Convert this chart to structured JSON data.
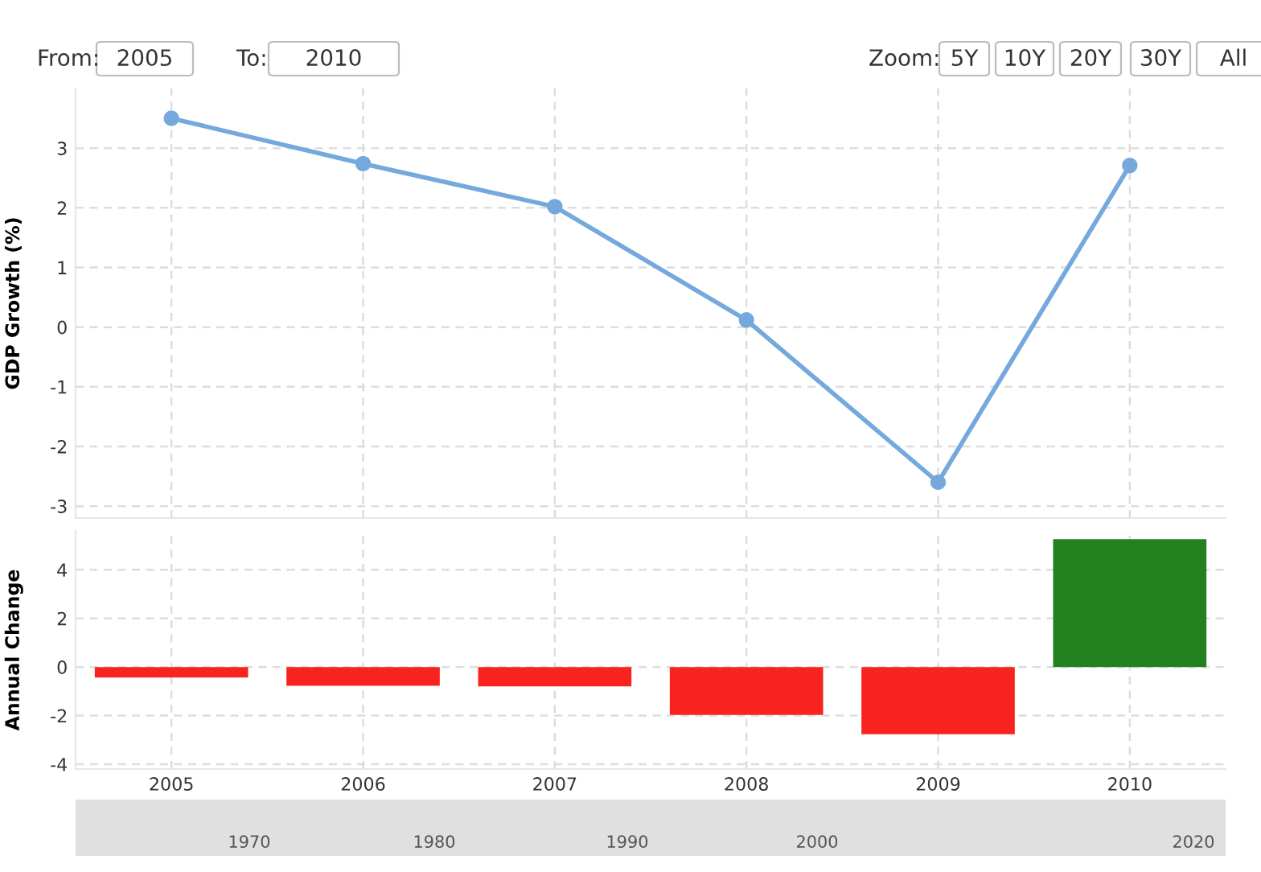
{
  "chart_data": [
    {
      "type": "line",
      "ylabel": "GDP Growth (%)",
      "categories": [
        null,
        null,
        null,
        null,
        null,
        null
      ],
      "series": [
        {
          "color": "#75a9dd",
          "values": [
            3.5,
            2.74,
            2.02,
            0.12,
            -2.6,
            2.71
          ]
        }
      ],
      "ylim": [
        -3.2,
        4
      ],
      "yticks": [
        -3,
        -2,
        -1,
        0,
        1,
        2,
        3
      ],
      "tick_labels": "y",
      "grid": true,
      "marker": "circle",
      "line_style": "solid",
      "annotations": [
        "From:",
        "2005",
        "To:",
        "2010",
        "Zoom:",
        "5Y",
        "10Y",
        "20Y",
        "30Y",
        "All"
      ]
    },
    {
      "type": "bar",
      "ylabel": "Annual Change",
      "categories": [
        "2005",
        "2006",
        "2007",
        "2008",
        "2009",
        "2010"
      ],
      "values": [
        -0.43,
        -0.77,
        -0.8,
        -1.97,
        -2.77,
        5.26
      ],
      "colors": [
        "#f8231e",
        "#f8231e",
        "#f8231e",
        "#f8231e",
        "#f8231e",
        "#23801e"
      ],
      "ylim": [
        -4.2,
        5.6
      ],
      "yticks": [
        -4,
        -2,
        0,
        2,
        4
      ],
      "grid": true,
      "annotations": [
        "1970",
        "1980",
        "1990",
        "2000",
        "2020"
      ]
    }
  ]
}
